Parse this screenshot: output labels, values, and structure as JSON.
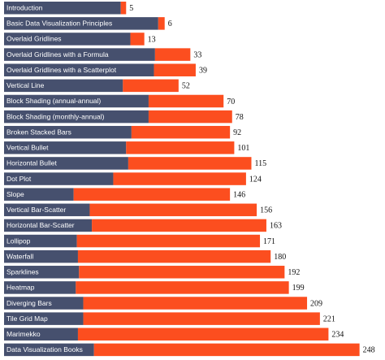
{
  "chart_data": {
    "type": "stacked-barh",
    "categories": [
      "Introduction",
      "Basic Data Visualization Principles",
      "Overlaid Gridlines",
      "Overlaid Gridlines with a Formula",
      "Overlaid Gridlines with a Scatterplot",
      "Vertical Line",
      "Block Shading (annual-annual)",
      "Block Shading (monthly-annual)",
      "Broken Stacked Bars",
      "Vertical Bullet",
      "Horizontal Bullet",
      "Dot Plot",
      "Slope",
      "Vertical Bar-Scatter",
      "Horizontal Bar-Scatter",
      "Lollipop",
      "Waterfall",
      "Sparklines",
      "Heatmap",
      "Diverging Bars",
      "Tile Grid Map",
      "Marimekko",
      "Data Visualization Books"
    ],
    "series": [
      {
        "color": "#46506e",
        "values": [
          109,
          144,
          118,
          141,
          140,
          111,
          135,
          135,
          119,
          114,
          116,
          102,
          65,
          80,
          82,
          68,
          69,
          70,
          67,
          74,
          74,
          69,
          84
        ]
      },
      {
        "color": "#fc4e1f",
        "values": [
          5,
          6,
          13,
          33,
          39,
          52,
          70,
          78,
          92,
          101,
          115,
          124,
          146,
          156,
          163,
          171,
          180,
          192,
          199,
          209,
          221,
          234,
          248
        ]
      }
    ],
    "xlim": [
      0,
      352
    ]
  }
}
